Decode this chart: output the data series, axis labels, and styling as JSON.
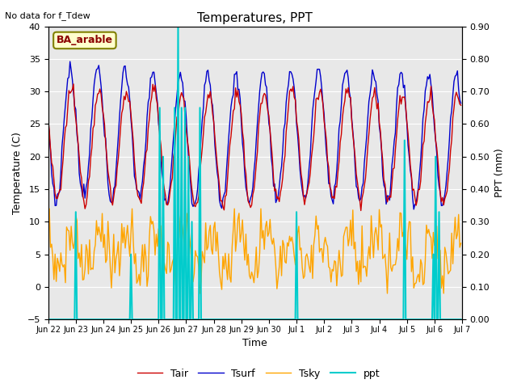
{
  "title": "Temperatures, PPT",
  "subtitle": "No data for f_Tdew",
  "annotation": "BA_arable",
  "xlabel": "Time",
  "ylabel_left": "Temperature (C)",
  "ylabel_right": "PPT (mm)",
  "ylim_left": [
    -5,
    40
  ],
  "ylim_right": [
    0.0,
    0.9
  ],
  "yticks_left": [
    -5,
    0,
    5,
    10,
    15,
    20,
    25,
    30,
    35,
    40
  ],
  "yticks_right": [
    0.0,
    0.1,
    0.2,
    0.3,
    0.4,
    0.5,
    0.6,
    0.7,
    0.8,
    0.9
  ],
  "plot_bg_color": "#e8e8e8",
  "legend_items": [
    "Tair",
    "Tsurf",
    "Tsky",
    "ppt"
  ],
  "tair_color": "#cc0000",
  "tsurf_color": "#0000cc",
  "tsky_color": "#ffa500",
  "ppt_color": "#00cccc",
  "title_fontsize": 11,
  "subtitle_fontsize": 8,
  "label_fontsize": 9,
  "tick_fontsize": 8,
  "xtick_fontsize": 7,
  "legend_fontsize": 9
}
